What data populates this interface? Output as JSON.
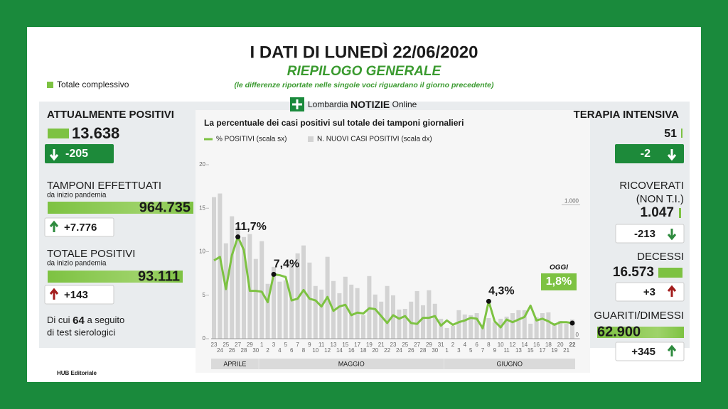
{
  "header": {
    "title": "I DATI DI LUNEDÌ 22/06/2020",
    "subtitle": "RIEPILOGO GENERALE",
    "note": "(le differenze riportate nelle singole voci riguardano il giorno precedente)",
    "logo": {
      "brand": "Lombardia",
      "name": "NOTIZIE",
      "suffix": "Online"
    }
  },
  "legend": "Totale complessivo",
  "left": {
    "attualmente_positivi": {
      "label": "ATTUALMENTE POSITIVI",
      "value": "13.638",
      "change": "-205"
    },
    "tamponi": {
      "label": "TAMPONI EFFETTUATI",
      "sublabel": "da inizio pandemia",
      "value": "964.735",
      "change": "+7.776"
    },
    "totale_positivi": {
      "label": "TOTALE POSITIVI",
      "sublabel": "da inizio pandemia",
      "value": "93.111",
      "change": "+143"
    },
    "sierologici": {
      "before": "Di cui",
      "number": "64",
      "after": "a seguito",
      "line2": "di test sierologici"
    }
  },
  "right": {
    "terapia_intensiva": {
      "label": "TERAPIA INTENSIVA",
      "value": "51",
      "change": "-2"
    },
    "ricoverati": {
      "label": "RICOVERATI",
      "label2": "(NON T.I.)",
      "value": "1.047",
      "change": "-213"
    },
    "decessi": {
      "label": "DECESSI",
      "value": "16.573",
      "change": "+3"
    },
    "guariti": {
      "label": "GUARITI/DIMESSI",
      "value": "62.900",
      "change": "+345"
    }
  },
  "footer": "HUB Editoriale",
  "chart_data": {
    "type": "bar-line",
    "title": "La percentuale dei casi positivi sul totale dei tamponi giornalieri",
    "categories": [
      "23",
      "24",
      "25",
      "26",
      "27",
      "28",
      "29",
      "30",
      "1",
      "2",
      "3",
      "4",
      "5",
      "6",
      "7",
      "8",
      "9",
      "10",
      "11",
      "12",
      "13",
      "14",
      "15",
      "16",
      "17",
      "18",
      "19",
      "20",
      "21",
      "22",
      "23",
      "24",
      "25",
      "26",
      "27",
      "28",
      "29",
      "30",
      "31",
      "1",
      "2",
      "3",
      "4",
      "5",
      "6",
      "7",
      "8",
      "9",
      "10",
      "11",
      "12",
      "13",
      "14",
      "15",
      "16",
      "17",
      "18",
      "19",
      "20",
      "21",
      "22"
    ],
    "months": [
      "APRILE",
      "MAGGIO",
      "GIUGNO"
    ],
    "series": [
      {
        "name": "% POSITIVI (scala sx)",
        "type": "line",
        "color": "#7dc242",
        "values": [
          9.0,
          9.4,
          5.7,
          9.6,
          11.7,
          10.2,
          5.5,
          5.5,
          5.4,
          4.2,
          7.4,
          7.3,
          7.1,
          4.4,
          4.6,
          5.6,
          4.6,
          4.4,
          3.7,
          4.8,
          3.2,
          3.7,
          3.9,
          2.7,
          3.0,
          2.9,
          3.5,
          3.4,
          2.6,
          1.8,
          2.7,
          2.3,
          2.6,
          1.8,
          1.7,
          2.4,
          2.4,
          2.6,
          1.5,
          2.1,
          1.6,
          1.9,
          2.1,
          2.4,
          2.3,
          1.2,
          4.3,
          2.0,
          1.3,
          2.2,
          1.9,
          2.2,
          2.5,
          3.8,
          2.1,
          2.3,
          2.0,
          1.6,
          1.9,
          1.9,
          1.8
        ],
        "value_labels": [
          null,
          null,
          null,
          null,
          "11,7%",
          null,
          null,
          null,
          null,
          null,
          "7,4%",
          null,
          null,
          null,
          null,
          null,
          null,
          null,
          null,
          null,
          null,
          null,
          null,
          null,
          null,
          null,
          null,
          null,
          null,
          null,
          null,
          null,
          null,
          null,
          null,
          null,
          null,
          null,
          null,
          null,
          null,
          null,
          null,
          null,
          null,
          null,
          "4,3%",
          null,
          null,
          null,
          null,
          null,
          null,
          null,
          null,
          null,
          null,
          null,
          null,
          null,
          "1,8%"
        ]
      },
      {
        "name": "N. NUOVI CASI POSITIVI (scala dx)",
        "type": "bar",
        "axis": "y2",
        "color": "#d3d3d3",
        "values": [
          1058,
          1085,
          713,
          915,
          835,
          760,
          782,
          596,
          729,
          410,
          537,
          426,
          436,
          569,
          638,
          697,
          569,
          394,
          367,
          612,
          431,
          340,
          463,
          404,
          378,
          176,
          468,
          330,
          277,
          394,
          324,
          218,
          223,
          277,
          356,
          250,
          362,
          261,
          149,
          80,
          96,
          213,
          181,
          176,
          191,
          106,
          154,
          122,
          149,
          165,
          191,
          213,
          213,
          112,
          160,
          191,
          197,
          117,
          133,
          112,
          143
        ]
      }
    ],
    "annotation": "OGGI",
    "ylim": [
      0,
      20
    ],
    "yticks": [
      0,
      5,
      10,
      15,
      20
    ],
    "y2lim": [
      0,
      1300
    ],
    "y2ticks": [
      0,
      {
        "value": 1000,
        "label": "1.000"
      }
    ]
  }
}
